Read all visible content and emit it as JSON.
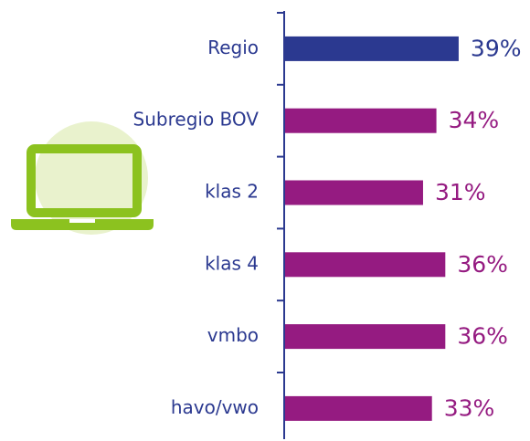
{
  "chart_data": {
    "type": "barh",
    "categories": [
      "Regio",
      "Subregio BOV",
      "klas 2",
      "klas 4",
      "vmbo",
      "havo/vwo"
    ],
    "values": [
      39,
      34,
      31,
      36,
      36,
      33
    ],
    "value_labels": [
      "39%",
      "34%",
      "31%",
      "36%",
      "36%",
      "33%"
    ],
    "colors": [
      "#2b3990",
      "#951b81",
      "#951b81",
      "#951b81",
      "#951b81",
      "#951b81"
    ]
  }
}
